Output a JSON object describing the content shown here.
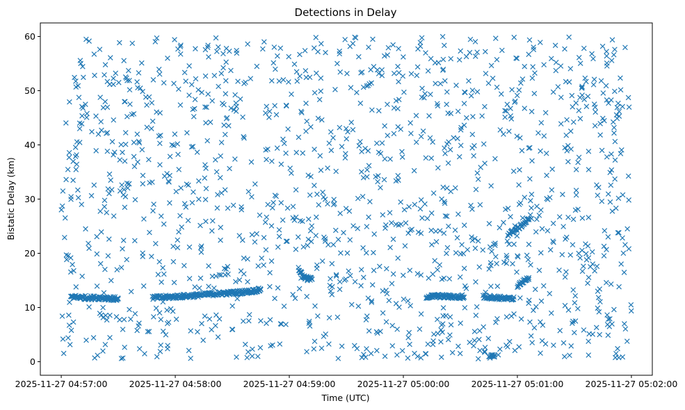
{
  "chart_data": {
    "type": "scatter",
    "title": "Detections in Delay",
    "xlabel": "Time (UTC)",
    "ylabel": "Bistatic Delay (km)",
    "x_unit": "UTC time",
    "x_range": [
      "2025-11-27 04:56:49",
      "2025-11-27 05:02:11"
    ],
    "ylim": [
      -2.5,
      62.5
    ],
    "x_ticks": [
      "2025-11-27 04:57:00",
      "2025-11-27 04:58:00",
      "2025-11-27 04:59:00",
      "2025-11-27 05:00:00",
      "2025-11-27 05:01:00",
      "2025-11-27 05:02:00"
    ],
    "y_ticks": [
      0,
      10,
      20,
      30,
      40,
      50,
      60
    ],
    "marker": "x",
    "color": "#1f77b4",
    "grid": false,
    "legend": "none",
    "background_noise": {
      "description": "uniformly scattered false detections",
      "x_range": [
        "2025-11-27 04:57:00",
        "2025-11-27 05:02:00"
      ],
      "y_range": [
        0.5,
        60
      ],
      "count": 1400
    },
    "tracks": [
      {
        "time": [
          "2025-11-27 04:57:05",
          "2025-11-27 04:57:10",
          "2025-11-27 04:57:15",
          "2025-11-27 04:57:20",
          "2025-11-27 04:57:25",
          "2025-11-27 04:57:30"
        ],
        "delay_km": [
          12.0,
          11.9,
          11.8,
          11.8,
          11.7,
          11.6
        ]
      },
      {
        "time": [
          "2025-11-27 04:57:48",
          "2025-11-27 04:57:55",
          "2025-11-27 04:58:00",
          "2025-11-27 04:58:10",
          "2025-11-27 04:58:20",
          "2025-11-27 04:58:30",
          "2025-11-27 04:58:40",
          "2025-11-27 04:58:45"
        ],
        "delay_km": [
          11.8,
          11.9,
          12.0,
          12.2,
          12.5,
          12.7,
          13.0,
          13.3
        ]
      },
      {
        "time": [
          "2025-11-27 04:59:05",
          "2025-11-27 04:59:08",
          "2025-11-27 04:59:12"
        ],
        "delay_km": [
          17.0,
          15.5,
          15.2
        ]
      },
      {
        "time": [
          "2025-11-27 05:00:12",
          "2025-11-27 05:00:18",
          "2025-11-27 05:00:25",
          "2025-11-27 05:00:32"
        ],
        "delay_km": [
          12.0,
          12.1,
          12.0,
          11.9
        ]
      },
      {
        "time": [
          "2025-11-27 05:00:42",
          "2025-11-27 05:00:50",
          "2025-11-27 05:00:58"
        ],
        "delay_km": [
          12.0,
          11.8,
          11.5
        ]
      },
      {
        "time": [
          "2025-11-27 05:00:55",
          "2025-11-27 05:01:00",
          "2025-11-27 05:01:06"
        ],
        "delay_km": [
          23.5,
          24.5,
          26.2
        ]
      },
      {
        "time": [
          "2025-11-27 05:01:00",
          "2025-11-27 05:01:06"
        ],
        "delay_km": [
          14.0,
          15.5
        ]
      },
      {
        "time": [
          "2025-11-27 05:00:45",
          "2025-11-27 05:00:48"
        ],
        "delay_km": [
          1.0,
          0.9
        ]
      }
    ]
  }
}
